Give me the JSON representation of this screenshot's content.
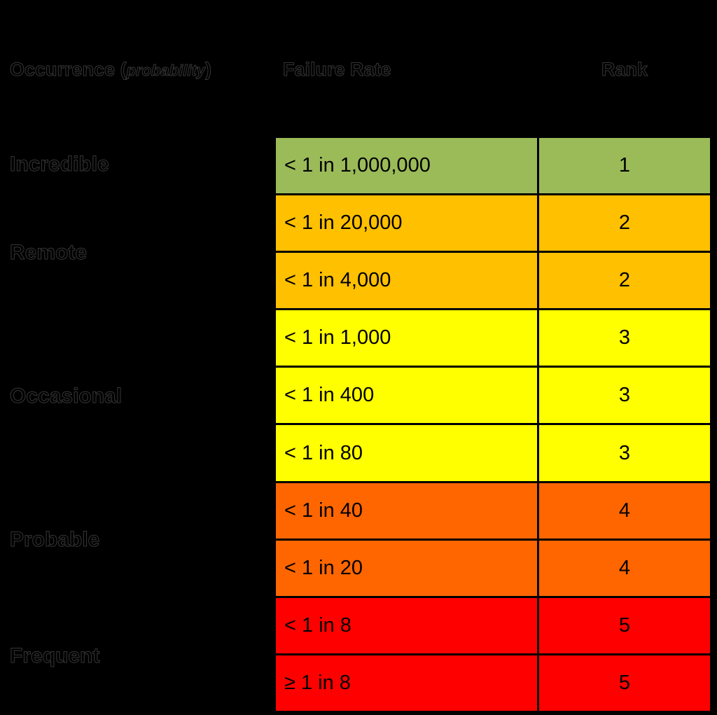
{
  "colors": {
    "background": "#000000",
    "border": "#000000",
    "text": "#000000",
    "rank1_green": "#9BBB59",
    "rank2_amber": "#FFC000",
    "rank3_yellow": "#FFFF00",
    "rank4_orange": "#FF6600",
    "rank5_red": "#FF0000"
  },
  "header": {
    "occurrence_prefix": "Occurrence (",
    "occurrence_italic": "probability",
    "occurrence_suffix": ")",
    "failure_rate": "Failure Rate",
    "rank": "Rank"
  },
  "occurrence_labels": [
    {
      "label": "Incredible"
    },
    {
      "label": "Remote"
    },
    {
      "label": "Occasional"
    },
    {
      "label": "Probable"
    },
    {
      "label": "Frequent"
    }
  ],
  "rows": [
    {
      "failure_rate": "< 1 in 1,000,000",
      "rank": "1",
      "color": "#9BBB59"
    },
    {
      "failure_rate": "< 1 in 20,000",
      "rank": "2",
      "color": "#FFC000"
    },
    {
      "failure_rate": "< 1 in 4,000",
      "rank": "2",
      "color": "#FFC000"
    },
    {
      "failure_rate": "< 1 in 1,000",
      "rank": "3",
      "color": "#FFFF00"
    },
    {
      "failure_rate": "< 1 in 400",
      "rank": "3",
      "color": "#FFFF00"
    },
    {
      "failure_rate": "< 1 in 80",
      "rank": "3",
      "color": "#FFFF00"
    },
    {
      "failure_rate": "< 1 in 40",
      "rank": "4",
      "color": "#FF6600"
    },
    {
      "failure_rate": "< 1 in 20",
      "rank": "4",
      "color": "#FF6600"
    },
    {
      "failure_rate": "< 1 in 8",
      "rank": "5",
      "color": "#FF0000"
    },
    {
      "failure_rate": "≥ 1 in 8",
      "rank": "5",
      "color": "#FF0000"
    }
  ],
  "chart_data": {
    "type": "table",
    "columns": [
      "Occurrence (probability)",
      "Failure Rate",
      "Rank"
    ],
    "rows": [
      [
        "Incredible",
        "< 1 in 1,000,000",
        1
      ],
      [
        "Remote",
        "< 1 in 20,000",
        2
      ],
      [
        "Remote",
        "< 1 in 4,000",
        2
      ],
      [
        "Occasional",
        "< 1 in 1,000",
        3
      ],
      [
        "Occasional",
        "< 1 in 400",
        3
      ],
      [
        "Occasional",
        "< 1 in 80",
        3
      ],
      [
        "Probable",
        "< 1 in 40",
        4
      ],
      [
        "Probable",
        "< 1 in 20",
        4
      ],
      [
        "Frequent",
        "< 1 in 8",
        5
      ],
      [
        "Frequent",
        "≥ 1 in 8",
        5
      ]
    ],
    "row_colors": [
      "#9BBB59",
      "#FFC000",
      "#FFC000",
      "#FFFF00",
      "#FFFF00",
      "#FFFF00",
      "#FF6600",
      "#FF6600",
      "#FF0000",
      "#FF0000"
    ],
    "layout": "occurrence category labels on black background at left; colored failure-rate and rank cells with black grid borders"
  }
}
